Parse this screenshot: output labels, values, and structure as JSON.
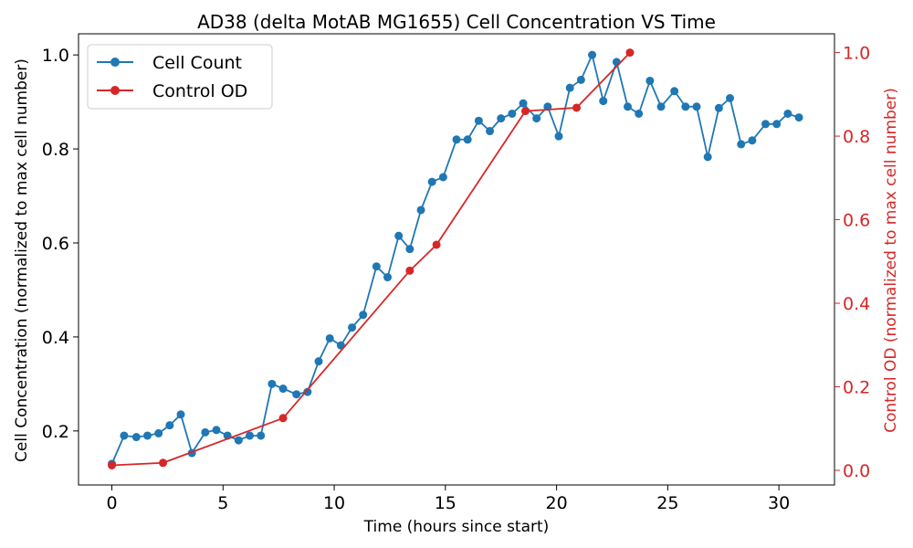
{
  "chart_data": {
    "type": "line",
    "title": "AD38 (delta MotAB MG1655) Cell Concentration VS Time",
    "xlabel": "Time (hours since start)",
    "ylabel_left": "Cell Concentration (normalized to max cell number)",
    "ylabel_right": "Control OD (normalized to max cell number)",
    "xlim": [
      -1.5,
      32.5
    ],
    "ylim_left": [
      0.085,
      1.045
    ],
    "ylim_right": [
      -0.035,
      1.045
    ],
    "x_ticks": [
      "0",
      "5",
      "10",
      "15",
      "20",
      "25",
      "30"
    ],
    "y_left_ticks": [
      "0.2",
      "0.4",
      "0.6",
      "0.8",
      "1.0"
    ],
    "y_right_ticks": [
      "0.0",
      "0.2",
      "0.4",
      "0.6",
      "0.8",
      "1.0"
    ],
    "grid": false,
    "legend_position": "top-left",
    "series": [
      {
        "name": "Cell Count",
        "color": "#1f77b4",
        "axis": "left",
        "x": [
          0.0,
          0.55,
          1.1,
          1.6,
          2.1,
          2.6,
          3.1,
          3.6,
          4.2,
          4.7,
          5.2,
          5.7,
          6.2,
          6.7,
          7.2,
          7.7,
          8.3,
          8.8,
          9.3,
          9.8,
          10.3,
          10.8,
          11.3,
          11.9,
          12.4,
          12.9,
          13.4,
          13.9,
          14.4,
          14.9,
          15.5,
          16.0,
          16.5,
          17.0,
          17.5,
          18.0,
          18.5,
          19.1,
          19.6,
          20.1,
          20.6,
          21.1,
          21.6,
          22.1,
          22.7,
          23.2,
          23.7,
          24.2,
          24.7,
          25.3,
          25.8,
          26.3,
          26.8,
          27.3,
          27.8,
          28.3,
          28.8,
          29.4,
          29.9,
          30.4,
          30.9
        ],
        "values": [
          0.13,
          0.19,
          0.187,
          0.19,
          0.195,
          0.212,
          0.235,
          0.153,
          0.197,
          0.202,
          0.19,
          0.18,
          0.19,
          0.19,
          0.3,
          0.29,
          0.278,
          0.283,
          0.348,
          0.397,
          0.382,
          0.42,
          0.447,
          0.55,
          0.527,
          0.615,
          0.587,
          0.67,
          0.73,
          0.74,
          0.82,
          0.82,
          0.86,
          0.838,
          0.865,
          0.875,
          0.897,
          0.865,
          0.89,
          0.827,
          0.93,
          0.947,
          1.0,
          0.902,
          0.985,
          0.89,
          0.875,
          0.945,
          0.89,
          0.923,
          0.89,
          0.89,
          0.783,
          0.887,
          0.908,
          0.81,
          0.818,
          0.853,
          0.853,
          0.875,
          0.867
        ]
      },
      {
        "name": "Control OD",
        "color": "#d62728",
        "axis": "right",
        "x": [
          0.0,
          2.3,
          7.7,
          13.4,
          14.6,
          18.6,
          20.9,
          23.3
        ],
        "values": [
          0.012,
          0.018,
          0.125,
          0.478,
          0.54,
          0.86,
          0.868,
          1.0
        ]
      }
    ]
  }
}
